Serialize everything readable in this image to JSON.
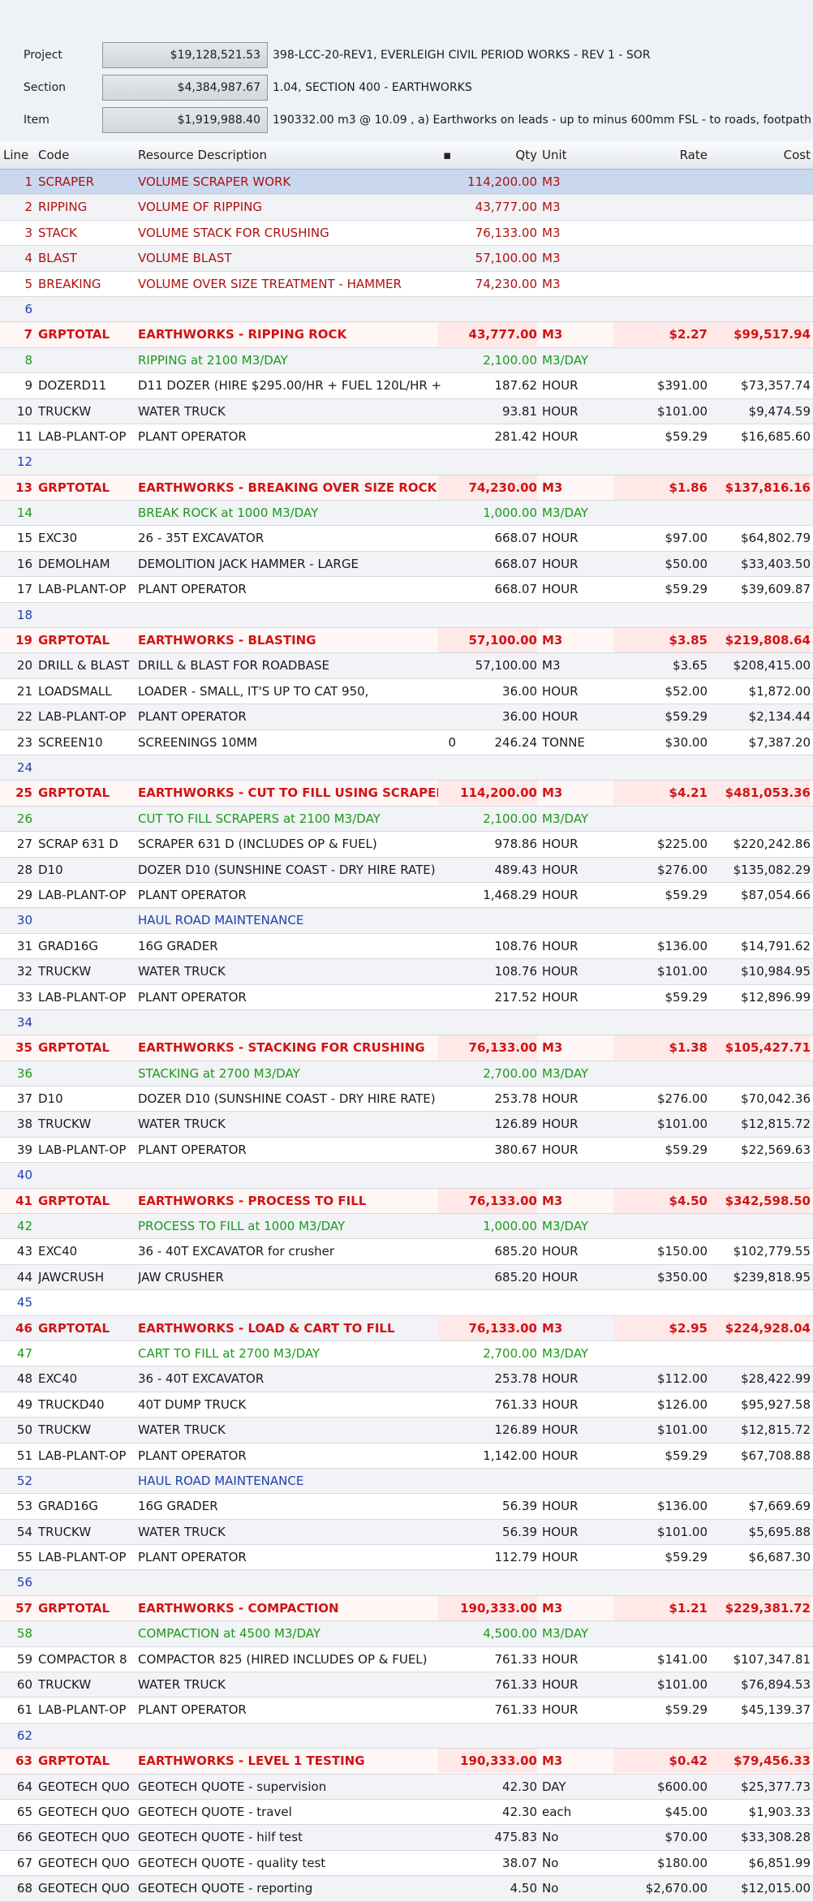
{
  "top": {
    "project": {
      "label": "Project",
      "value": "$19,128,521.53",
      "desc": "398-LCC-20-REV1, EVERLEIGH CIVIL PERIOD WORKS - REV 1 - SOR"
    },
    "section": {
      "label": "Section",
      "value": "$4,384,987.67",
      "desc": "1.04, SECTION 400 - EARTHWORKS"
    },
    "item": {
      "label": "Item",
      "value": "$1,919,988.40",
      "desc": "190332.00 m3 @ 10.09 , a) Earthworks on leads - up to minus 600mm FSL - to roads, footpath"
    }
  },
  "headers": {
    "line": "Line",
    "code": "Code",
    "desc": "Resource Description",
    "qty": "Qty",
    "unit": "Unit",
    "rate": "Rate",
    "cost": "Cost"
  },
  "rows": [
    {
      "line": "1",
      "code": "SCRAPER",
      "desc": "VOLUME SCRAPER WORK",
      "qty": "114,200.00",
      "unit": "M3",
      "rate": "",
      "cost": "",
      "t": "darkred",
      "sel": true
    },
    {
      "line": "2",
      "code": "RIPPING",
      "desc": "VOLUME OF RIPPING",
      "qty": "43,777.00",
      "unit": "M3",
      "rate": "",
      "cost": "",
      "t": "darkred"
    },
    {
      "line": "3",
      "code": "STACK",
      "desc": "VOLUME STACK FOR CRUSHING",
      "qty": "76,133.00",
      "unit": "M3",
      "rate": "",
      "cost": "",
      "t": "darkred"
    },
    {
      "line": "4",
      "code": "BLAST",
      "desc": "VOLUME BLAST",
      "qty": "57,100.00",
      "unit": "M3",
      "rate": "",
      "cost": "",
      "t": "darkred"
    },
    {
      "line": "5",
      "code": "BREAKING",
      "desc": "VOLUME OVER SIZE TREATMENT - HAMMER",
      "qty": "74,230.00",
      "unit": "M3",
      "rate": "",
      "cost": "",
      "t": "darkred"
    },
    {
      "line": "6",
      "code": "",
      "desc": "",
      "qty": "",
      "unit": "",
      "rate": "",
      "cost": "",
      "t": "blue"
    },
    {
      "line": "7",
      "code": "GRPTOTAL",
      "desc": "EARTHWORKS - RIPPING ROCK",
      "qty": "43,777.00",
      "unit": "M3",
      "rate": "$2.27",
      "cost": "$99,517.94",
      "t": "red"
    },
    {
      "line": "8",
      "code": "",
      "desc": "RIPPING at 2100 M3/DAY",
      "qty": "2,100.00",
      "unit": "M3/DAY",
      "rate": "",
      "cost": "",
      "t": "green"
    },
    {
      "line": "9",
      "code": "DOZERD11",
      "desc": "D11 DOZER (HIRE $295.00/HR + FUEL 120L/HR +",
      "qty": "187.62",
      "unit": "HOUR",
      "rate": "$391.00",
      "cost": "$73,357.74",
      "t": "black"
    },
    {
      "line": "10",
      "code": "TRUCKW",
      "desc": "WATER TRUCK",
      "qty": "93.81",
      "unit": "HOUR",
      "rate": "$101.00",
      "cost": "$9,474.59",
      "t": "black"
    },
    {
      "line": "11",
      "code": "LAB-PLANT-OP",
      "desc": "PLANT OPERATOR",
      "qty": "281.42",
      "unit": "HOUR",
      "rate": "$59.29",
      "cost": "$16,685.60",
      "t": "black"
    },
    {
      "line": "12",
      "code": "",
      "desc": "",
      "qty": "",
      "unit": "",
      "rate": "",
      "cost": "",
      "t": "blue"
    },
    {
      "line": "13",
      "code": "GRPTOTAL",
      "desc": "EARTHWORKS - BREAKING OVER SIZE ROCK",
      "qty": "74,230.00",
      "unit": "M3",
      "rate": "$1.86",
      "cost": "$137,816.16",
      "t": "red"
    },
    {
      "line": "14",
      "code": "",
      "desc": "BREAK ROCK at 1000 M3/DAY",
      "qty": "1,000.00",
      "unit": "M3/DAY",
      "rate": "",
      "cost": "",
      "t": "green"
    },
    {
      "line": "15",
      "code": "EXC30",
      "desc": "26 - 35T EXCAVATOR",
      "qty": "668.07",
      "unit": "HOUR",
      "rate": "$97.00",
      "cost": "$64,802.79",
      "t": "black"
    },
    {
      "line": "16",
      "code": "DEMOLHAM",
      "desc": "DEMOLITION JACK HAMMER - LARGE",
      "qty": "668.07",
      "unit": "HOUR",
      "rate": "$50.00",
      "cost": "$33,403.50",
      "t": "black"
    },
    {
      "line": "17",
      "code": "LAB-PLANT-OP",
      "desc": "PLANT OPERATOR",
      "qty": "668.07",
      "unit": "HOUR",
      "rate": "$59.29",
      "cost": "$39,609.87",
      "t": "black"
    },
    {
      "line": "18",
      "code": "",
      "desc": "",
      "qty": "",
      "unit": "",
      "rate": "",
      "cost": "",
      "t": "blue"
    },
    {
      "line": "19",
      "code": "GRPTOTAL",
      "desc": "EARTHWORKS - BLASTING",
      "qty": "57,100.00",
      "unit": "M3",
      "rate": "$3.85",
      "cost": "$219,808.64",
      "t": "red"
    },
    {
      "line": "20",
      "code": "DRILL & BLAST",
      "desc": "DRILL & BLAST FOR ROADBASE",
      "qty": "57,100.00",
      "unit": "M3",
      "rate": "$3.65",
      "cost": "$208,415.00",
      "t": "black"
    },
    {
      "line": "21",
      "code": "LOADSMALL",
      "desc": "LOADER - SMALL, IT'S UP TO CAT 950,",
      "qty": "36.00",
      "unit": "HOUR",
      "rate": "$52.00",
      "cost": "$1,872.00",
      "t": "black"
    },
    {
      "line": "22",
      "code": "LAB-PLANT-OP",
      "desc": "PLANT OPERATOR",
      "qty": "36.00",
      "unit": "HOUR",
      "rate": "$59.29",
      "cost": "$2,134.44",
      "t": "black"
    },
    {
      "line": "23",
      "code": "SCREEN10",
      "desc": "SCREENINGS 10MM",
      "extra": "0",
      "qty": "246.24",
      "unit": "TONNE",
      "rate": "$30.00",
      "cost": "$7,387.20",
      "t": "black"
    },
    {
      "line": "24",
      "code": "",
      "desc": "",
      "qty": "",
      "unit": "",
      "rate": "",
      "cost": "",
      "t": "blue"
    },
    {
      "line": "25",
      "code": "GRPTOTAL",
      "desc": "EARTHWORKS - CUT TO FILL USING SCRAPERS",
      "qty": "114,200.00",
      "unit": "M3",
      "rate": "$4.21",
      "cost": "$481,053.36",
      "t": "red"
    },
    {
      "line": "26",
      "code": "",
      "desc": "CUT TO FILL SCRAPERS at 2100 M3/DAY",
      "qty": "2,100.00",
      "unit": "M3/DAY",
      "rate": "",
      "cost": "",
      "t": "green"
    },
    {
      "line": "27",
      "code": "SCRAP 631 D",
      "desc": "SCRAPER 631 D (INCLUDES OP & FUEL)",
      "qty": "978.86",
      "unit": "HOUR",
      "rate": "$225.00",
      "cost": "$220,242.86",
      "t": "black"
    },
    {
      "line": "28",
      "code": "D10",
      "desc": "DOZER D10 (SUNSHINE COAST - DRY HIRE RATE)",
      "qty": "489.43",
      "unit": "HOUR",
      "rate": "$276.00",
      "cost": "$135,082.29",
      "t": "black"
    },
    {
      "line": "29",
      "code": "LAB-PLANT-OP",
      "desc": "PLANT OPERATOR",
      "qty": "1,468.29",
      "unit": "HOUR",
      "rate": "$59.29",
      "cost": "$87,054.66",
      "t": "black"
    },
    {
      "line": "30",
      "code": "",
      "desc": "HAUL ROAD MAINTENANCE",
      "qty": "",
      "unit": "",
      "rate": "",
      "cost": "",
      "t": "blue"
    },
    {
      "line": "31",
      "code": "GRAD16G",
      "desc": "16G GRADER",
      "qty": "108.76",
      "unit": "HOUR",
      "rate": "$136.00",
      "cost": "$14,791.62",
      "t": "black"
    },
    {
      "line": "32",
      "code": "TRUCKW",
      "desc": "WATER TRUCK",
      "qty": "108.76",
      "unit": "HOUR",
      "rate": "$101.00",
      "cost": "$10,984.95",
      "t": "black"
    },
    {
      "line": "33",
      "code": "LAB-PLANT-OP",
      "desc": "PLANT OPERATOR",
      "qty": "217.52",
      "unit": "HOUR",
      "rate": "$59.29",
      "cost": "$12,896.99",
      "t": "black"
    },
    {
      "line": "34",
      "code": "",
      "desc": "",
      "qty": "",
      "unit": "",
      "rate": "",
      "cost": "",
      "t": "blue"
    },
    {
      "line": "35",
      "code": "GRPTOTAL",
      "desc": "EARTHWORKS - STACKING FOR CRUSHING",
      "qty": "76,133.00",
      "unit": "M3",
      "rate": "$1.38",
      "cost": "$105,427.71",
      "t": "red"
    },
    {
      "line": "36",
      "code": "",
      "desc": "STACKING at 2700 M3/DAY",
      "qty": "2,700.00",
      "unit": "M3/DAY",
      "rate": "",
      "cost": "",
      "t": "green"
    },
    {
      "line": "37",
      "code": "D10",
      "desc": "DOZER D10 (SUNSHINE COAST - DRY HIRE RATE)",
      "qty": "253.78",
      "unit": "HOUR",
      "rate": "$276.00",
      "cost": "$70,042.36",
      "t": "black"
    },
    {
      "line": "38",
      "code": "TRUCKW",
      "desc": "WATER TRUCK",
      "qty": "126.89",
      "unit": "HOUR",
      "rate": "$101.00",
      "cost": "$12,815.72",
      "t": "black"
    },
    {
      "line": "39",
      "code": "LAB-PLANT-OP",
      "desc": "PLANT OPERATOR",
      "qty": "380.67",
      "unit": "HOUR",
      "rate": "$59.29",
      "cost": "$22,569.63",
      "t": "black"
    },
    {
      "line": "40",
      "code": "",
      "desc": "",
      "qty": "",
      "unit": "",
      "rate": "",
      "cost": "",
      "t": "blue"
    },
    {
      "line": "41",
      "code": "GRPTOTAL",
      "desc": "EARTHWORKS - PROCESS TO FILL",
      "qty": "76,133.00",
      "unit": "M3",
      "rate": "$4.50",
      "cost": "$342,598.50",
      "t": "red"
    },
    {
      "line": "42",
      "code": "",
      "desc": "PROCESS TO FILL at 1000 M3/DAY",
      "qty": "1,000.00",
      "unit": "M3/DAY",
      "rate": "",
      "cost": "",
      "t": "green"
    },
    {
      "line": "43",
      "code": "EXC40",
      "desc": "36 - 40T EXCAVATOR for crusher",
      "qty": "685.20",
      "unit": "HOUR",
      "rate": "$150.00",
      "cost": "$102,779.55",
      "t": "black"
    },
    {
      "line": "44",
      "code": "JAWCRUSH",
      "desc": "JAW CRUSHER",
      "qty": "685.20",
      "unit": "HOUR",
      "rate": "$350.00",
      "cost": "$239,818.95",
      "t": "black"
    },
    {
      "line": "45",
      "code": "",
      "desc": "",
      "qty": "",
      "unit": "",
      "rate": "",
      "cost": "",
      "t": "blue"
    },
    {
      "line": "46",
      "code": "GRPTOTAL",
      "desc": "EARTHWORKS - LOAD & CART TO FILL",
      "qty": "76,133.00",
      "unit": "M3",
      "rate": "$2.95",
      "cost": "$224,928.04",
      "t": "red"
    },
    {
      "line": "47",
      "code": "",
      "desc": "CART TO FILL at 2700 M3/DAY",
      "qty": "2,700.00",
      "unit": "M3/DAY",
      "rate": "",
      "cost": "",
      "t": "green"
    },
    {
      "line": "48",
      "code": "EXC40",
      "desc": "36 - 40T EXCAVATOR",
      "qty": "253.78",
      "unit": "HOUR",
      "rate": "$112.00",
      "cost": "$28,422.99",
      "t": "black"
    },
    {
      "line": "49",
      "code": "TRUCKD40",
      "desc": "40T DUMP TRUCK",
      "qty": "761.33",
      "unit": "HOUR",
      "rate": "$126.00",
      "cost": "$95,927.58",
      "t": "black"
    },
    {
      "line": "50",
      "code": "TRUCKW",
      "desc": "WATER TRUCK",
      "qty": "126.89",
      "unit": "HOUR",
      "rate": "$101.00",
      "cost": "$12,815.72",
      "t": "black"
    },
    {
      "line": "51",
      "code": "LAB-PLANT-OP",
      "desc": "PLANT OPERATOR",
      "qty": "1,142.00",
      "unit": "HOUR",
      "rate": "$59.29",
      "cost": "$67,708.88",
      "t": "black"
    },
    {
      "line": "52",
      "code": "",
      "desc": "HAUL ROAD MAINTENANCE",
      "qty": "",
      "unit": "",
      "rate": "",
      "cost": "",
      "t": "blue"
    },
    {
      "line": "53",
      "code": "GRAD16G",
      "desc": "16G GRADER",
      "qty": "56.39",
      "unit": "HOUR",
      "rate": "$136.00",
      "cost": "$7,669.69",
      "t": "black"
    },
    {
      "line": "54",
      "code": "TRUCKW",
      "desc": "WATER TRUCK",
      "qty": "56.39",
      "unit": "HOUR",
      "rate": "$101.00",
      "cost": "$5,695.88",
      "t": "black"
    },
    {
      "line": "55",
      "code": "LAB-PLANT-OP",
      "desc": "PLANT OPERATOR",
      "qty": "112.79",
      "unit": "HOUR",
      "rate": "$59.29",
      "cost": "$6,687.30",
      "t": "black"
    },
    {
      "line": "56",
      "code": "",
      "desc": "",
      "qty": "",
      "unit": "",
      "rate": "",
      "cost": "",
      "t": "blue"
    },
    {
      "line": "57",
      "code": "GRPTOTAL",
      "desc": "EARTHWORKS - COMPACTION",
      "qty": "190,333.00",
      "unit": "M3",
      "rate": "$1.21",
      "cost": "$229,381.72",
      "t": "red"
    },
    {
      "line": "58",
      "code": "",
      "desc": "COMPACTION at 4500 M3/DAY",
      "qty": "4,500.00",
      "unit": "M3/DAY",
      "rate": "",
      "cost": "",
      "t": "green"
    },
    {
      "line": "59",
      "code": "COMPACTOR 8",
      "desc": "COMPACTOR 825 (HIRED INCLUDES OP & FUEL)",
      "qty": "761.33",
      "unit": "HOUR",
      "rate": "$141.00",
      "cost": "$107,347.81",
      "t": "black"
    },
    {
      "line": "60",
      "code": "TRUCKW",
      "desc": "WATER TRUCK",
      "qty": "761.33",
      "unit": "HOUR",
      "rate": "$101.00",
      "cost": "$76,894.53",
      "t": "black"
    },
    {
      "line": "61",
      "code": "LAB-PLANT-OP",
      "desc": "PLANT OPERATOR",
      "qty": "761.33",
      "unit": "HOUR",
      "rate": "$59.29",
      "cost": "$45,139.37",
      "t": "black"
    },
    {
      "line": "62",
      "code": "",
      "desc": "",
      "qty": "",
      "unit": "",
      "rate": "",
      "cost": "",
      "t": "blue"
    },
    {
      "line": "63",
      "code": "GRPTOTAL",
      "desc": "EARTHWORKS - LEVEL 1 TESTING",
      "qty": "190,333.00",
      "unit": "M3",
      "rate": "$0.42",
      "cost": "$79,456.33",
      "t": "red"
    },
    {
      "line": "64",
      "code": "GEOTECH QUO",
      "desc": "GEOTECH QUOTE - supervision",
      "qty": "42.30",
      "unit": "DAY",
      "rate": "$600.00",
      "cost": "$25,377.73",
      "t": "black"
    },
    {
      "line": "65",
      "code": "GEOTECH QUO",
      "desc": "GEOTECH QUOTE - travel",
      "qty": "42.30",
      "unit": "each",
      "rate": "$45.00",
      "cost": "$1,903.33",
      "t": "black"
    },
    {
      "line": "66",
      "code": "GEOTECH QUO",
      "desc": "GEOTECH QUOTE - hilf test",
      "qty": "475.83",
      "unit": "No",
      "rate": "$70.00",
      "cost": "$33,308.28",
      "t": "black"
    },
    {
      "line": "67",
      "code": "GEOTECH QUO",
      "desc": "GEOTECH QUOTE - quality test",
      "qty": "38.07",
      "unit": "No",
      "rate": "$180.00",
      "cost": "$6,851.99",
      "t": "black"
    },
    {
      "line": "68",
      "code": "GEOTECH QUO",
      "desc": "GEOTECH QUOTE - reporting",
      "qty": "4.50",
      "unit": "No",
      "rate": "$2,670.00",
      "cost": "$12,015.00",
      "t": "black"
    }
  ]
}
